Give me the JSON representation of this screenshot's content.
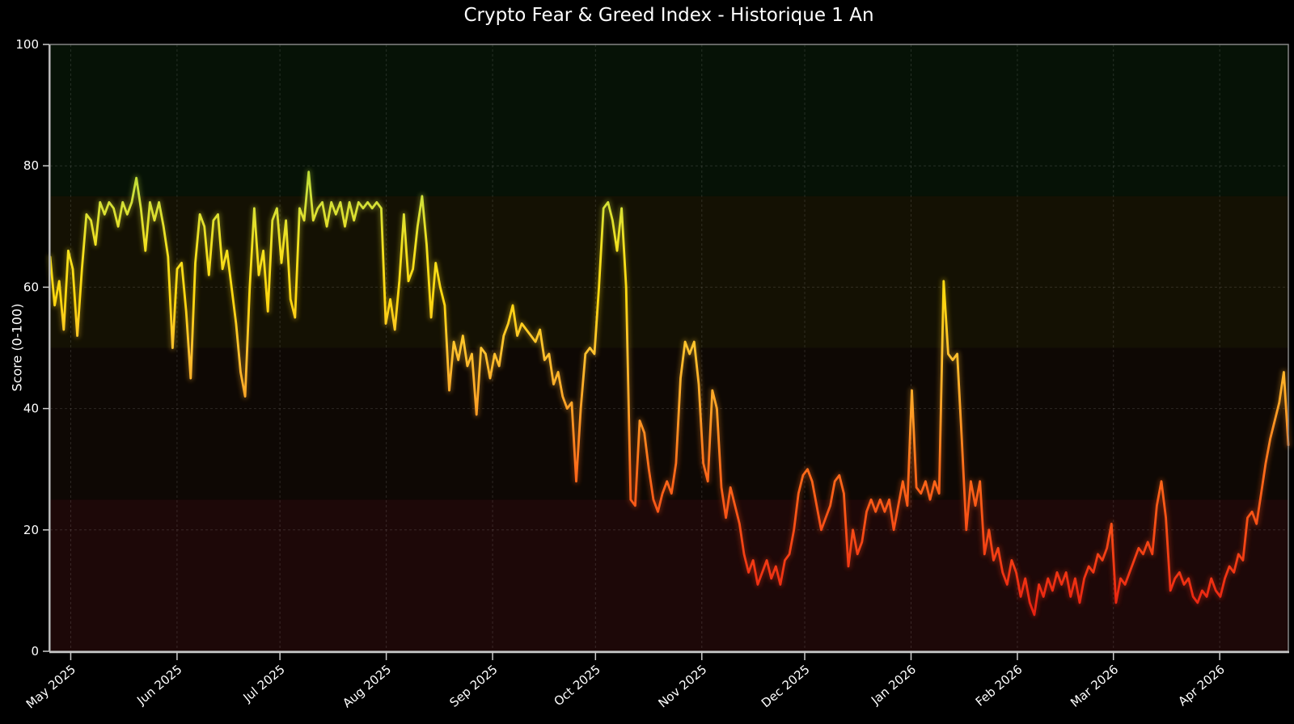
{
  "title": "Crypto Fear & Greed Index - Historique 1 An",
  "chart_data": {
    "type": "line",
    "title": "Crypto Fear & Greed Index - Historique 1 An",
    "xlabel": "",
    "ylabel": "Score (0-100)",
    "ylim": [
      0,
      100
    ],
    "grid": true,
    "legend": "none",
    "background": "#000000",
    "y_ticks": [
      0,
      20,
      40,
      60,
      80,
      100
    ],
    "x_ticks": [
      {
        "label": "May 2025",
        "day": 6
      },
      {
        "label": "Jun 2025",
        "day": 37
      },
      {
        "label": "Jul 2025",
        "day": 67
      },
      {
        "label": "Aug 2025",
        "day": 98
      },
      {
        "label": "Sep 2025",
        "day": 129
      },
      {
        "label": "Oct 2025",
        "day": 159
      },
      {
        "label": "Nov 2025",
        "day": 190
      },
      {
        "label": "Dec 2025",
        "day": 220
      },
      {
        "label": "Jan 2026",
        "day": 251
      },
      {
        "label": "Feb 2026",
        "day": 282
      },
      {
        "label": "Mar 2026",
        "day": 310
      },
      {
        "label": "Apr 2026",
        "day": 341
      }
    ],
    "total_days": 361,
    "bands": [
      {
        "from": 0,
        "to": 25,
        "color": "#1d0808"
      },
      {
        "from": 25,
        "to": 50,
        "color": "#0e0804"
      },
      {
        "from": 50,
        "to": 75,
        "color": "#141103"
      },
      {
        "from": 75,
        "to": 100,
        "color": "#061206"
      }
    ],
    "line_gradient": [
      {
        "value": 0,
        "color": "#dc1010"
      },
      {
        "value": 10,
        "color": "#ee2c12"
      },
      {
        "value": 20,
        "color": "#f84c16"
      },
      {
        "value": 30,
        "color": "#ff6c1a"
      },
      {
        "value": 40,
        "color": "#ffa126"
      },
      {
        "value": 50,
        "color": "#ffc32e"
      },
      {
        "value": 58,
        "color": "#ffd70f"
      },
      {
        "value": 66,
        "color": "#f5e11e"
      },
      {
        "value": 75,
        "color": "#cfe03a"
      },
      {
        "value": 85,
        "color": "#9fd42e"
      },
      {
        "value": 100,
        "color": "#6ec43c"
      }
    ],
    "values": [
      65,
      57,
      61,
      53,
      66,
      63,
      52,
      63,
      72,
      71,
      67,
      74,
      72,
      74,
      73,
      70,
      74,
      72,
      74,
      78,
      73,
      66,
      74,
      71,
      74,
      70,
      65,
      50,
      63,
      64,
      56,
      45,
      64,
      72,
      70,
      62,
      71,
      72,
      63,
      66,
      60,
      54,
      46,
      42,
      60,
      73,
      62,
      66,
      56,
      71,
      73,
      64,
      71,
      58,
      55,
      73,
      71,
      79,
      71,
      73,
      74,
      70,
      74,
      72,
      74,
      70,
      74,
      71,
      74,
      73,
      74,
      73,
      74,
      73,
      54,
      58,
      53,
      61,
      72,
      61,
      63,
      70,
      75,
      67,
      55,
      64,
      60,
      57,
      43,
      51,
      48,
      52,
      47,
      49,
      39,
      50,
      49,
      45,
      49,
      47,
      52,
      54,
      57,
      52,
      54,
      53,
      52,
      51,
      53,
      48,
      49,
      44,
      46,
      42,
      40,
      41,
      28,
      40,
      49,
      50,
      49,
      60,
      73,
      74,
      71,
      66,
      73,
      60,
      25,
      24,
      38,
      36,
      30,
      25,
      23,
      26,
      28,
      26,
      31,
      45,
      51,
      49,
      51,
      44,
      31,
      28,
      43,
      40,
      27,
      22,
      27,
      24,
      21,
      16,
      13,
      15,
      11,
      13,
      15,
      12,
      14,
      11,
      15,
      16,
      20,
      26,
      29,
      30,
      28,
      24,
      20,
      22,
      24,
      28,
      29,
      26,
      14,
      20,
      16,
      18,
      23,
      25,
      23,
      25,
      23,
      25,
      20,
      24,
      28,
      24,
      43,
      27,
      26,
      28,
      25,
      28,
      26,
      61,
      49,
      48,
      49,
      35,
      20,
      28,
      24,
      28,
      16,
      20,
      15,
      17,
      13,
      11,
      15,
      13,
      9,
      12,
      8,
      6,
      11,
      9,
      12,
      10,
      13,
      11,
      13,
      9,
      12,
      8,
      12,
      14,
      13,
      16,
      15,
      17,
      21,
      8,
      12,
      11,
      13,
      15,
      17,
      16,
      18,
      16,
      24,
      28,
      22,
      10,
      12,
      13,
      11,
      12,
      9,
      8,
      10,
      9,
      12,
      10,
      9,
      12,
      14,
      13,
      16,
      15,
      22,
      23,
      21,
      26,
      31,
      35,
      38,
      41,
      46,
      34
    ]
  }
}
